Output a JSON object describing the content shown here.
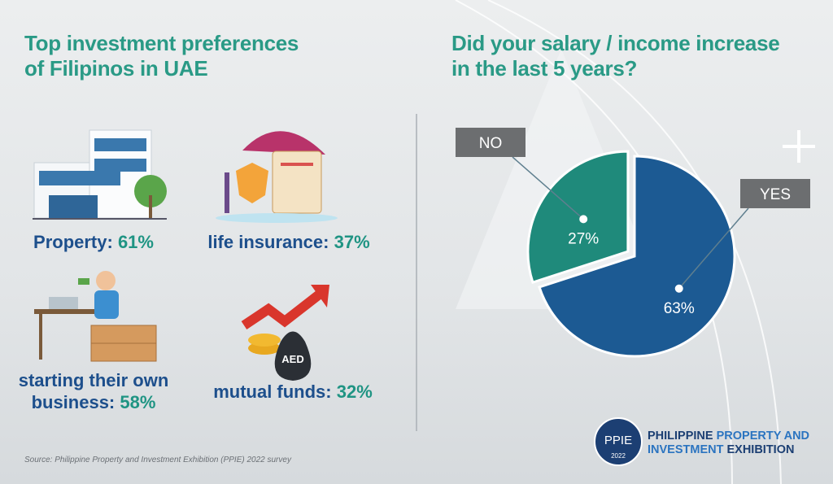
{
  "chart_data": {
    "type": "pie",
    "title": "Did your salary / income increase in the last 5 years?",
    "categories": [
      "NO",
      "YES"
    ],
    "values": [
      27,
      63
    ],
    "value_labels": [
      "27%",
      "63%"
    ],
    "colors": [
      "#1f8a7b",
      "#1c5a93"
    ]
  },
  "left_panel": {
    "title": "Top investment preferences of Filipinos in UAE",
    "items": [
      {
        "label": "Property:",
        "value": "61%"
      },
      {
        "label": "life insurance:",
        "value": "37%"
      },
      {
        "label": "starting their own business:",
        "value": "58%"
      },
      {
        "label": "mutual funds:",
        "value": "32%"
      }
    ]
  },
  "source": "Source: Philippine Property and Investment Exhibition (PPIE) 2022 survey",
  "logo": {
    "mark": "PPIE",
    "year": "2022",
    "line1a": "PHILIPPINE",
    "line1b": "PROPERTY AND",
    "line2a": "INVESTMENT",
    "line2b": "EXHIBITION",
    "coin": "AED"
  }
}
